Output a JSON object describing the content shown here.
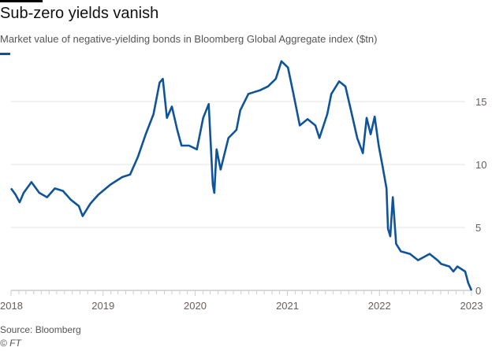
{
  "title": "Sub-zero yields vanish",
  "subtitle": "Market value of negative-yielding bonds in Bloomberg Global Aggregate index ($tn)",
  "source": "Source: Bloomberg",
  "credit": "© FT",
  "colors": {
    "line": "#0f5499",
    "grid": "#e8e6e3",
    "text": "#66605c"
  },
  "chart_data": {
    "type": "line",
    "title": "Sub-zero yields vanish",
    "ylabel": "",
    "xlim": [
      "2018-01-01",
      "2023-01-01"
    ],
    "ylim": [
      0,
      18.5
    ],
    "y_ticks": [
      "0",
      "5",
      "10",
      "15"
    ],
    "x_ticks": [
      "2018",
      "2019",
      "2020",
      "2021",
      "2022",
      "2023"
    ],
    "y_axis_side": "right",
    "grid": true,
    "series": [
      {
        "x": [
          "2018-01-01",
          "2018-01-19",
          "2018-02-04",
          "2018-02-20",
          "2018-03-23",
          "2018-04-23",
          "2018-05-24",
          "2018-06-24",
          "2018-07-26",
          "2018-08-26",
          "2018-09-27",
          "2018-10-12",
          "2018-11-12",
          "2018-12-13",
          "2019-01-30",
          "2019-03-18",
          "2019-04-18",
          "2019-05-19",
          "2019-06-19",
          "2019-07-20",
          "2019-08-13",
          "2019-08-26",
          "2019-09-11",
          "2019-10-01",
          "2019-10-22",
          "2019-11-08",
          "2019-12-08",
          "2020-01-08",
          "2020-02-02",
          "2020-02-24",
          "2020-03-11",
          "2020-03-17",
          "2020-03-26",
          "2020-04-11",
          "2020-05-12",
          "2020-06-13",
          "2020-06-28",
          "2020-07-30",
          "2020-08-14",
          "2020-09-15",
          "2020-10-16",
          "2020-11-16",
          "2020-12-08",
          "2021-01-03",
          "2021-01-25",
          "2021-02-19",
          "2021-03-22",
          "2021-04-22",
          "2021-05-08",
          "2021-06-08",
          "2021-06-24",
          "2021-07-25",
          "2021-08-19",
          "2021-09-10",
          "2021-10-05",
          "2021-10-27",
          "2021-11-11",
          "2021-11-27",
          "2021-12-13",
          "2021-12-29",
          "2022-01-13",
          "2022-01-29",
          "2022-02-04",
          "2022-02-13",
          "2022-02-23",
          "2022-03-08",
          "2022-03-27",
          "2022-05-02",
          "2022-06-03",
          "2022-07-19",
          "2022-08-19",
          "2022-09-03",
          "2022-10-05",
          "2022-10-21",
          "2022-11-06",
          "2022-12-07",
          "2022-12-19",
          "2023-01-01"
        ],
        "values": [
          8.1,
          7.6,
          7.0,
          7.75,
          8.6,
          7.75,
          7.4,
          8.1,
          7.9,
          7.2,
          6.7,
          5.9,
          6.9,
          7.6,
          8.4,
          9.0,
          9.2,
          10.6,
          12.4,
          14.0,
          16.5,
          16.8,
          13.7,
          14.6,
          12.75,
          11.5,
          11.5,
          11.2,
          13.7,
          14.8,
          8.4,
          7.75,
          11.2,
          9.6,
          12.1,
          12.75,
          14.3,
          15.6,
          15.7,
          15.9,
          16.2,
          16.8,
          18.2,
          17.7,
          15.6,
          13.1,
          13.6,
          13.1,
          12.1,
          14.0,
          15.6,
          16.6,
          16.2,
          14.3,
          12.1,
          10.9,
          13.7,
          12.4,
          13.8,
          11.5,
          9.9,
          8.1,
          4.9,
          4.3,
          7.4,
          3.7,
          3.1,
          2.9,
          2.4,
          2.9,
          2.4,
          2.1,
          1.9,
          1.5,
          1.9,
          1.5,
          0.6,
          0.0
        ]
      }
    ]
  }
}
